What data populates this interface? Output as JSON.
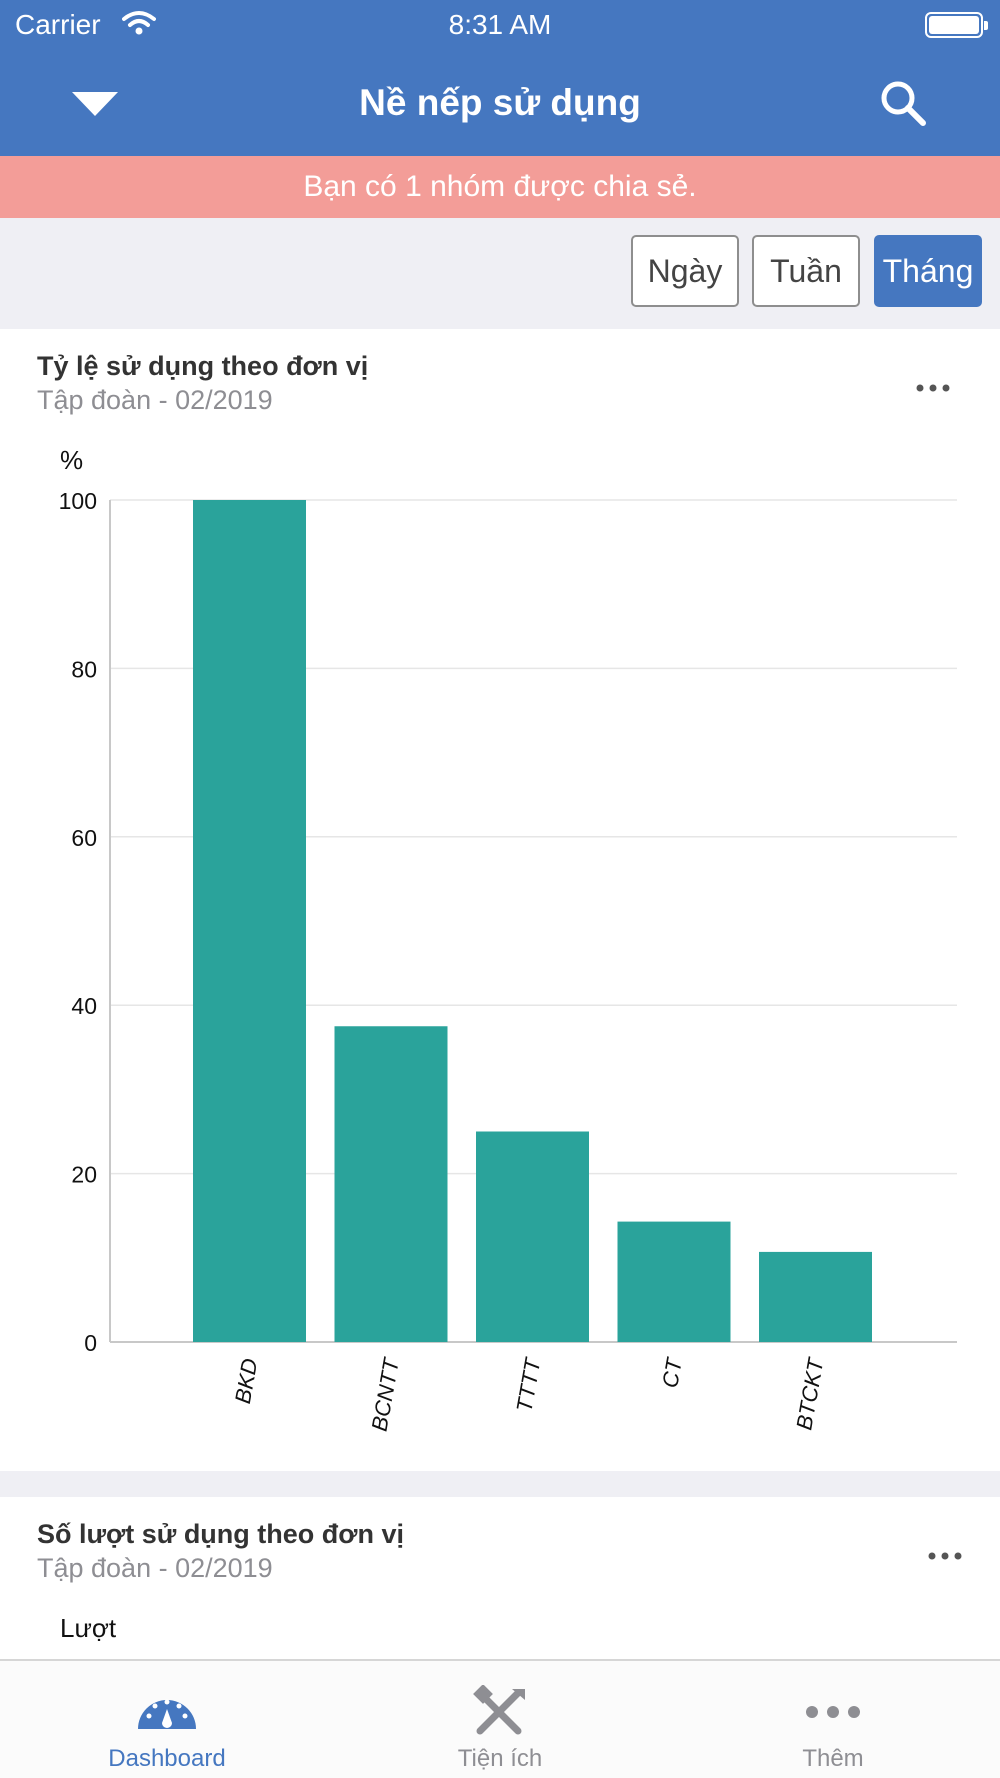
{
  "status_bar": {
    "carrier": "Carrier",
    "time": "8:31 AM"
  },
  "nav": {
    "title": "Nề nếp sử dụng"
  },
  "banner": {
    "text": "Bạn có 1 nhóm được chia sẻ."
  },
  "segments": [
    {
      "label": "Ngày",
      "active": false
    },
    {
      "label": "Tuần",
      "active": false
    },
    {
      "label": "Tháng",
      "active": true
    }
  ],
  "card1": {
    "title": "Tỷ lệ sử dụng theo đơn vị",
    "subtitle": "Tập đoàn - 02/2019",
    "unit": "%"
  },
  "card2": {
    "title": "Số lượt sử dụng theo đơn vị",
    "subtitle": "Tập đoàn - 02/2019",
    "unit": "Lượt"
  },
  "chart_data": {
    "type": "bar",
    "categories": [
      "BKD",
      "BCNTT",
      "TTTT",
      "CT",
      "BTCKT"
    ],
    "values": [
      100,
      37.5,
      25,
      14.3,
      10.7
    ],
    "ylabel": "%",
    "ylim": [
      0,
      100
    ],
    "yticks": [
      0,
      20,
      40,
      60,
      80,
      100
    ],
    "grid": true,
    "bar_color": "#2aa39b"
  },
  "tabs": [
    {
      "label": "Dashboard",
      "icon": "dashboard-gauge-icon",
      "active": true
    },
    {
      "label": "Tiện ích",
      "icon": "tools-icon",
      "active": false
    },
    {
      "label": "Thêm",
      "icon": "more-dots-icon",
      "active": false
    }
  ],
  "colors": {
    "primary": "#4577c0",
    "banner": "#f39d98",
    "bar": "#2aa39b",
    "tab_inactive": "#8e8e93"
  }
}
